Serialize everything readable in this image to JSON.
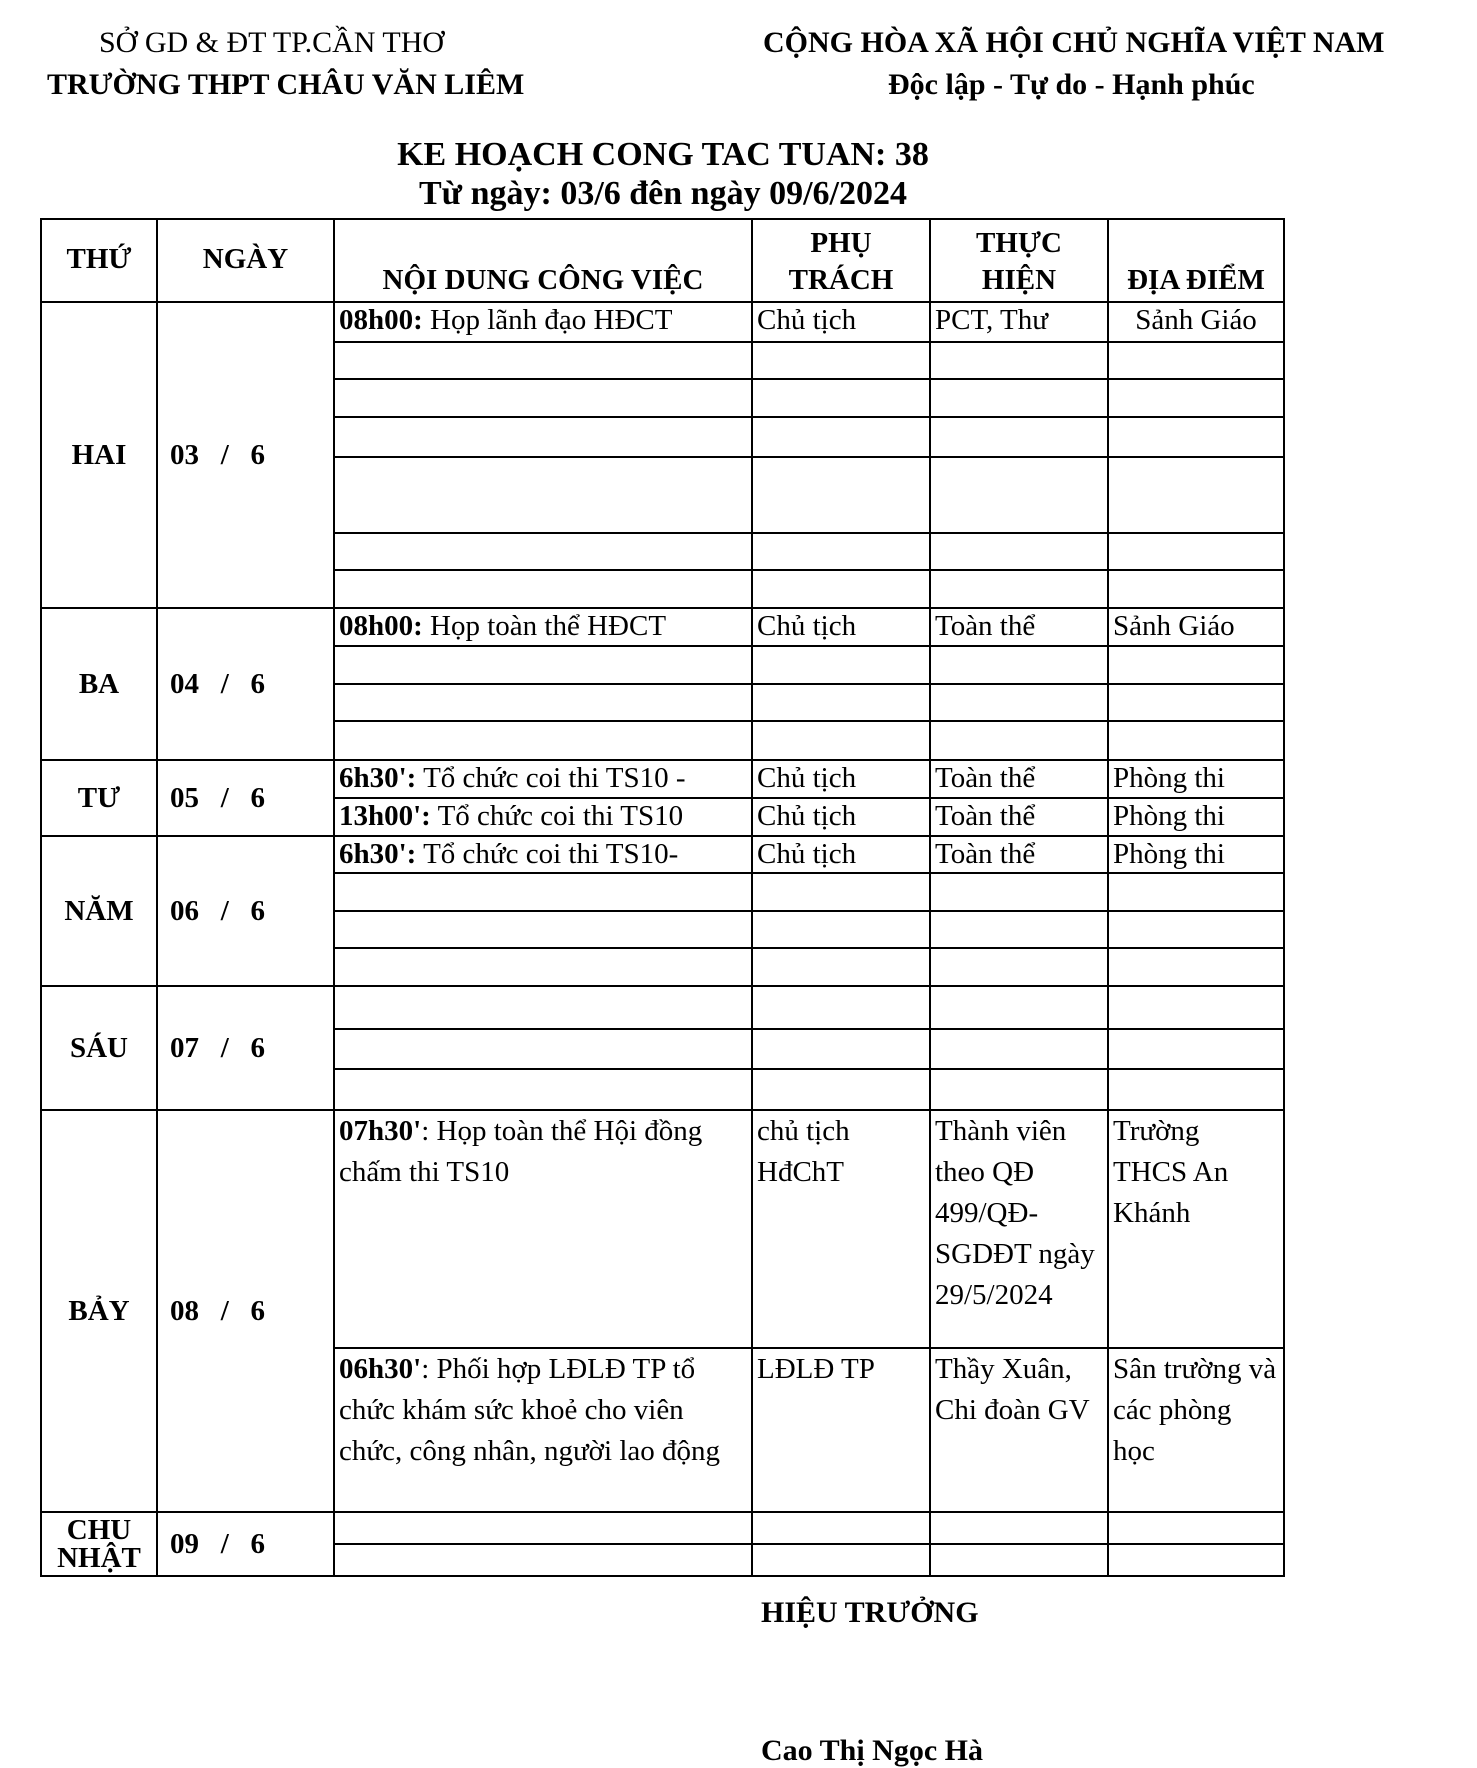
{
  "header": {
    "left_line1": "SỞ GD & ĐT TP.CẦN THƠ",
    "left_line2": "TRƯỜNG THPT CHÂU VĂN LIÊM",
    "right_line1": "CỘNG HÒA XÃ HỘI CHỦ NGHĨA VIỆT NAM",
    "right_line2": "Độc lập - Tự do - Hạnh phúc"
  },
  "title": {
    "line1": "KE HOẠCH CONG TAC TUAN: 38",
    "line2": "Từ ngày: 03/6 đên ngày  09/6/2024"
  },
  "table": {
    "columns": [
      "THỨ",
      "NGÀY",
      "NỘI DUNG CÔNG VIỆC",
      "PHỤ\nTRÁCH",
      "THỰC\nHIỆN",
      "ĐỊA ĐIỂM"
    ],
    "days": [
      {
        "day": "HAI",
        "date": "03   /   6",
        "rows": [
          {
            "time": "08h00:",
            "content": " Họp lãnh đạo HĐCT",
            "phu_trach": "Chủ tịch",
            "thuc_hien": "PCT, Thư",
            "dia_diem": "Sảnh Giáo"
          },
          {},
          {},
          {},
          {},
          {},
          {}
        ]
      },
      {
        "day": "BA",
        "date": "04   /   6",
        "rows": [
          {
            "time": "08h00:",
            "content": " Họp toàn thể HĐCT",
            "phu_trach": "Chủ tịch",
            "thuc_hien": "Toàn thể",
            "dia_diem": "Sảnh Giáo"
          },
          {},
          {},
          {}
        ]
      },
      {
        "day": "TƯ",
        "date": "05   /   6",
        "rows": [
          {
            "time": "6h30':",
            "content": " Tổ chức coi thi TS10 -",
            "phu_trach": "Chủ tịch",
            "thuc_hien": "Toàn thể",
            "dia_diem": "Phòng thi"
          },
          {
            "time": "13h00':",
            "content": " Tổ chức coi thi TS10",
            "phu_trach": "Chủ tịch",
            "thuc_hien": "Toàn thể",
            "dia_diem": "Phòng thi"
          }
        ]
      },
      {
        "day": "NĂM",
        "date": "06   /   6",
        "rows": [
          {
            "time": "6h30':",
            "content": " Tổ chức coi thi TS10-",
            "phu_trach": "Chủ tịch",
            "thuc_hien": "Toàn thể",
            "dia_diem": "Phòng thi"
          },
          {},
          {},
          {}
        ]
      },
      {
        "day": "SÁU",
        "date": "07   /   6",
        "rows": [
          {},
          {},
          {}
        ]
      },
      {
        "day": "BẢY",
        "date": "08   /   6",
        "rows": [
          {
            "time": "07h30'",
            "content": ": Họp toàn thể Hội đồng chấm thi TS10",
            "phu_trach": "chủ tịch HđChT",
            "thuc_hien": "Thành viên theo QĐ 499/QĐ-SGDĐT ngày 29/5/2024",
            "dia_diem": "Trường THCS An Khánh"
          },
          {
            "time": "06h30'",
            "content": ": Phối hợp LĐLĐ TP tổ chức khám sức khoẻ cho viên chức, công nhân, người lao động",
            "phu_trach": "LĐLĐ TP",
            "thuc_hien": "Thầy Xuân, Chi đoàn GV",
            "dia_diem": "Sân trường và các phòng học"
          }
        ]
      },
      {
        "day": "CHU NHẬT",
        "date": "09   /   6",
        "rows": [
          {},
          {}
        ]
      }
    ]
  },
  "signature": {
    "role": "HIỆU TRƯỞNG",
    "name": "Cao Thị Ngọc Hà"
  }
}
